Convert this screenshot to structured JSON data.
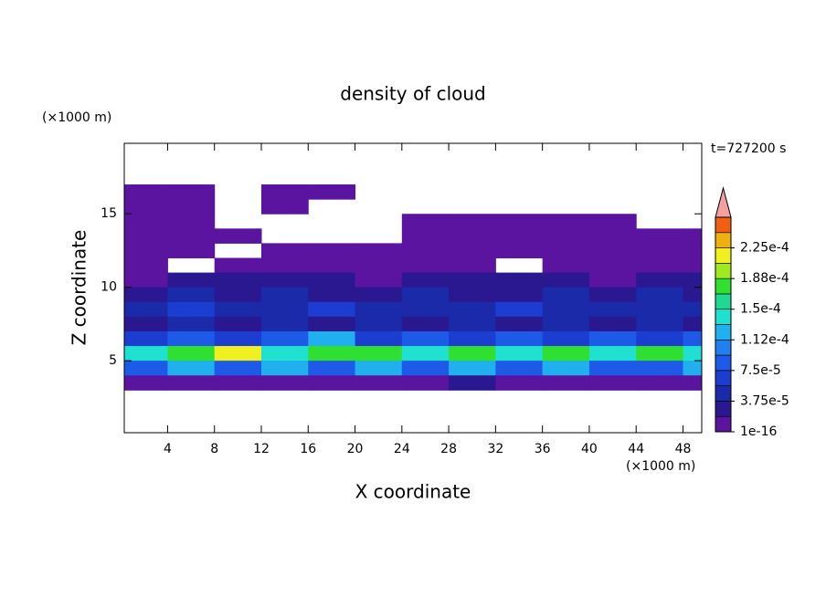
{
  "chart_data": {
    "type": "contour",
    "title": "density of cloud",
    "x_label": "X coordinate",
    "y_label": "Z coordinate",
    "x_unit": "(×1000 m)",
    "y_unit": "(×1000 m)",
    "annotation": "t=727200 s",
    "xlim": [
      0.3,
      49.6
    ],
    "ylim": [
      0.1,
      19.8
    ],
    "xticks": [
      4,
      8,
      12,
      16,
      20,
      24,
      28,
      32,
      36,
      40,
      44,
      48
    ],
    "yticks": [
      5,
      10,
      15
    ],
    "x": [
      2,
      6,
      10,
      14,
      18,
      22,
      26,
      30,
      34,
      38,
      42,
      46,
      50
    ],
    "y": [
      16.5,
      15.5,
      14.5,
      13.5,
      12.5,
      11.5,
      10.5,
      9.5,
      8.5,
      7.5,
      6.5,
      5.5,
      4.5,
      3.5
    ],
    "z": [
      [
        5e-06,
        5e-06,
        null,
        5e-06,
        5e-06,
        null,
        null,
        null,
        null,
        null,
        null,
        null,
        null
      ],
      [
        5e-06,
        5e-06,
        null,
        5e-06,
        null,
        null,
        null,
        null,
        null,
        null,
        null,
        null,
        null
      ],
      [
        5e-06,
        5e-06,
        null,
        null,
        null,
        null,
        5e-06,
        5e-06,
        5e-06,
        5e-06,
        5e-06,
        null,
        null
      ],
      [
        5e-06,
        5e-06,
        5e-06,
        null,
        null,
        null,
        5e-06,
        5e-06,
        5e-06,
        5e-06,
        5e-06,
        5e-06,
        5e-06
      ],
      [
        5e-06,
        5e-06,
        null,
        5e-06,
        5e-06,
        5e-06,
        5e-06,
        5e-06,
        5e-06,
        5e-06,
        5e-06,
        5e-06,
        5e-06
      ],
      [
        5e-06,
        null,
        5e-06,
        5e-06,
        5e-06,
        5e-06,
        5e-06,
        5e-06,
        null,
        5e-06,
        5e-06,
        5e-06,
        5e-06
      ],
      [
        5e-06,
        2.5e-05,
        2.5e-05,
        2.5e-05,
        2.5e-05,
        5e-06,
        2.5e-05,
        2.5e-05,
        2.5e-05,
        2.5e-05,
        5e-06,
        2.5e-05,
        2.5e-05
      ],
      [
        2.5e-05,
        4e-05,
        2.5e-05,
        4e-05,
        2.5e-05,
        2.5e-05,
        4e-05,
        2.5e-05,
        2.5e-05,
        4e-05,
        2.5e-05,
        4e-05,
        2.5e-05
      ],
      [
        4e-05,
        6e-05,
        4e-05,
        4e-05,
        6e-05,
        4e-05,
        4e-05,
        4e-05,
        6e-05,
        4e-05,
        4e-05,
        4e-05,
        4e-05
      ],
      [
        2.5e-05,
        4e-05,
        2.5e-05,
        4e-05,
        2.5e-05,
        4e-05,
        2.5e-05,
        4e-05,
        2.5e-05,
        4e-05,
        2.5e-05,
        4e-05,
        2.5e-05
      ],
      [
        6e-05,
        8e-05,
        6e-05,
        8e-05,
        0.00012,
        6e-05,
        8e-05,
        6e-05,
        8e-05,
        6e-05,
        8e-05,
        6e-05,
        8e-05
      ],
      [
        0.00014,
        0.00017,
        0.00021,
        0.00014,
        0.00017,
        0.00017,
        0.00014,
        0.00017,
        0.00014,
        0.00017,
        0.00014,
        0.00017,
        0.00014
      ],
      [
        8e-05,
        0.00012,
        8e-05,
        0.00012,
        8e-05,
        0.00012,
        8e-05,
        0.00012,
        8e-05,
        0.00012,
        8e-05,
        8e-05,
        0.00012
      ],
      [
        5e-06,
        5e-06,
        5e-06,
        5e-06,
        5e-06,
        5e-06,
        5e-06,
        2.5e-05,
        5e-06,
        5e-06,
        5e-06,
        5e-06,
        5e-06
      ]
    ],
    "colorbar": {
      "levels": [
        1e-16,
        1.875e-05,
        3.75e-05,
        5.625e-05,
        7.5e-05,
        9.375e-05,
        0.0001125,
        0.00013125,
        0.00015,
        0.00016875,
        0.0001875,
        0.00020625,
        0.000225,
        0.00024375,
        0.0002625
      ],
      "colors": [
        "#5a14a0",
        "#2a1890",
        "#1a2aa8",
        "#1c3ed0",
        "#1e5ae8",
        "#2080f0",
        "#20b0f0",
        "#20e0d0",
        "#20d890",
        "#30e030",
        "#a0e820",
        "#f0f020",
        "#f0b010",
        "#f06010"
      ],
      "extend_color": "#f4a0a0",
      "ticks": [
        {
          "value": 1e-16,
          "label": "1e-16"
        },
        {
          "value": 3.75e-05,
          "label": "3.75e-5"
        },
        {
          "value": 7.5e-05,
          "label": "7.5e-5"
        },
        {
          "value": 0.0001125,
          "label": "1.12e-4"
        },
        {
          "value": 0.00015,
          "label": "1.5e-4"
        },
        {
          "value": 0.0001875,
          "label": "1.88e-4"
        },
        {
          "value": 0.000225,
          "label": "2.25e-4"
        }
      ]
    }
  }
}
